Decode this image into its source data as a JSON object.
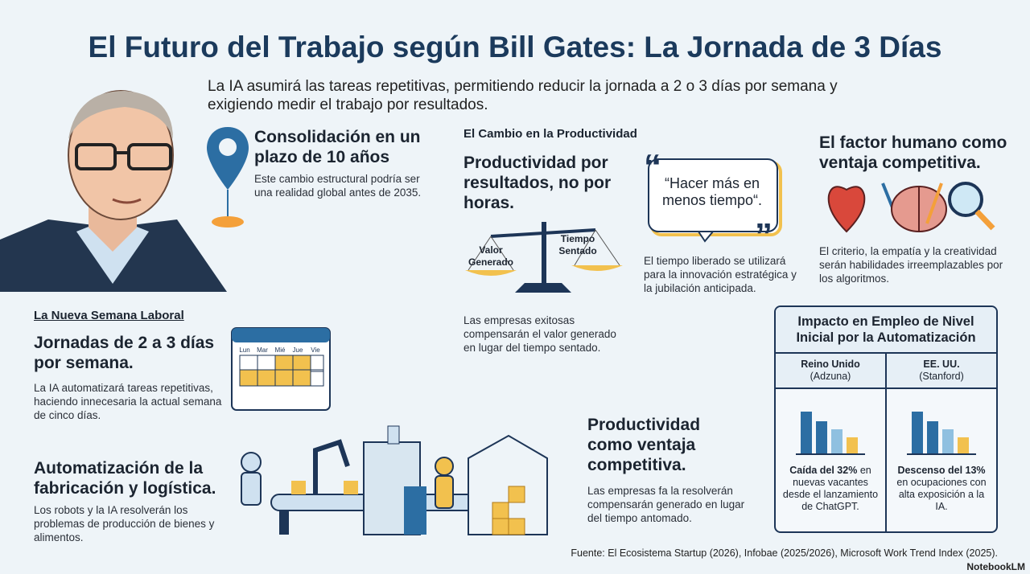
{
  "header": {
    "title": "El Futuro del Trabajo según Bill Gates: La Jornada de 3 Días",
    "subtitle": "La IA asumirá las tareas repetitivas, permitiendo reducir la jornada a 2 o 3 días por semana y exigiendo medir el trabajo por resultados."
  },
  "consolidation": {
    "heading": "Consolidación en un plazo de 10 años",
    "text": "Este cambio estructural podría ser una realidad global antes de 2035."
  },
  "productivity": {
    "label": "El Cambio en la Productividad",
    "heading": "Productividad por resultados, no por horas.",
    "scale_left": "Valor Generado",
    "scale_right": "Tiempo Sentado",
    "text": "Las empresas exitosas compensarán el valor generado en lugar del tiempo sentado."
  },
  "quote": {
    "text": "“Hacer más en menos tiempo“.",
    "caption": "El tiempo liberado se utilizará para la innovación estratégica y la jubilación anticipada."
  },
  "human": {
    "heading": "El factor humano como ventaja competitiva.",
    "text": "El criterio, la empatía y la creatividad serán habilidades irreemplazables por los algoritmos."
  },
  "week": {
    "label": "La Nueva Semana Laboral",
    "heading": "Jornadas de 2 a 3 días por semana.",
    "text": "La IA automatizará tareas repetitivas, haciendo innecesaria la actual semana de cinco días.",
    "days": [
      "Lun",
      "Mar",
      "Mié",
      "Jue",
      "Vie"
    ]
  },
  "automation": {
    "heading": "Automatización de la fabricación y logística.",
    "text": "Los robots y la IA resolverán los problemas de producción de bienes y alimentos."
  },
  "competitive": {
    "heading": "Productividad como ventaja competitiva.",
    "text": "Las empresas fa la resolverán compensarán generado en lugar del tiempo antomado."
  },
  "table": {
    "title": "Impacto en Empleo de Nivel Inicial por la Automatización",
    "columns": [
      {
        "name": "Reino Unido",
        "source": "(Adzuna)",
        "stat": "Caída del 32%",
        "detail": "en nuevas vacantes desde el lanzamiento de ChatGPT."
      },
      {
        "name": "EE. UU.",
        "source": "(Stanford)",
        "stat": "Descenso del 13%",
        "detail": "en ocupaciones con alta exposición a la IA."
      }
    ]
  },
  "footer": {
    "source": "Fuente: El Ecosistema Startup (2026), Infobae (2025/2026), Microsoft Work Trend Index (2025).",
    "brand": "NotebookLM"
  }
}
